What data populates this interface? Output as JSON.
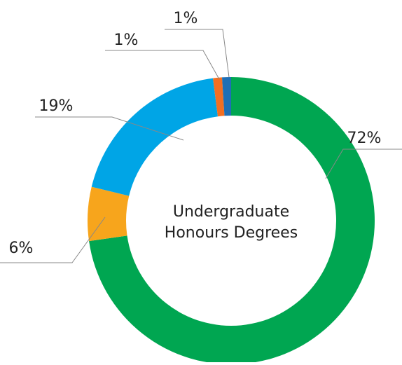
{
  "chart_data": {
    "type": "donut",
    "center_label_lines": [
      "Undergraduate",
      "Honours Degrees"
    ],
    "values": [
      72,
      6,
      19,
      1,
      1
    ],
    "value_labels": [
      "72%",
      "6%",
      "19%",
      "1%",
      "1%"
    ],
    "colors": [
      "#00a651",
      "#f7a51c",
      "#00a5e6",
      "#f26f22",
      "#1f6fb5"
    ]
  }
}
